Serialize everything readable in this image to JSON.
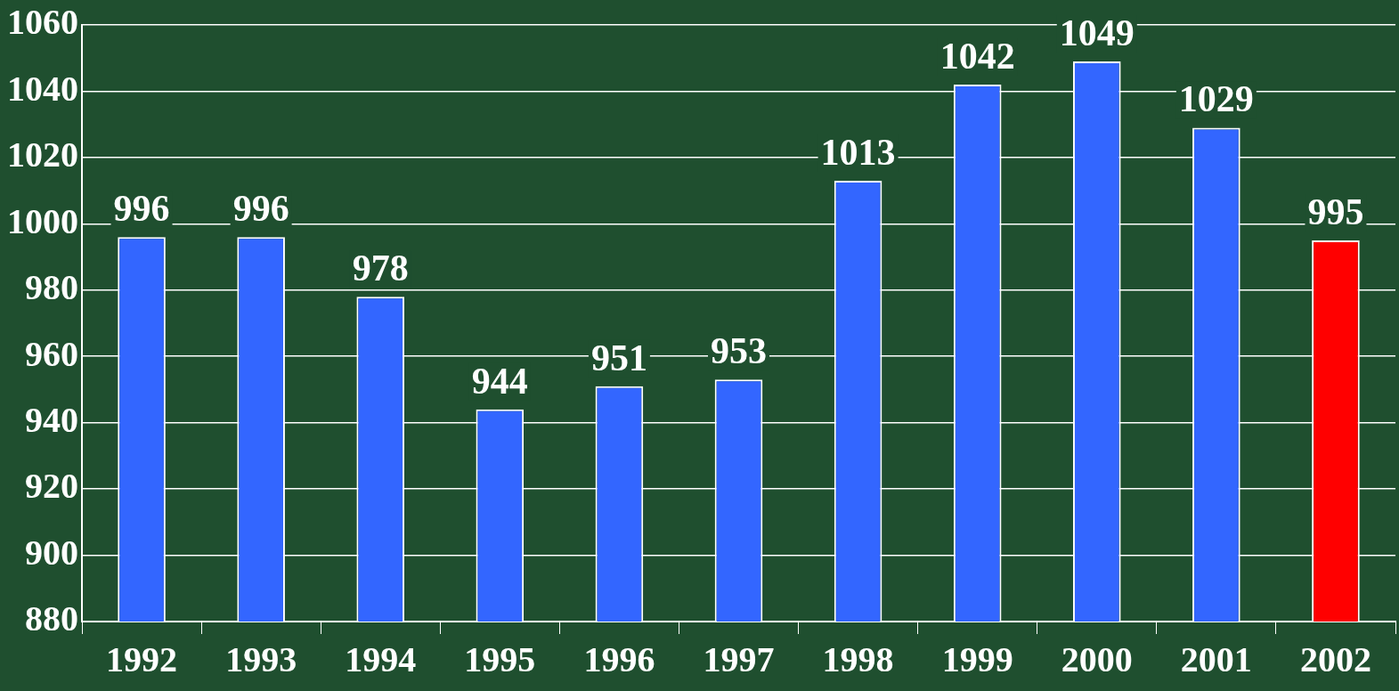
{
  "chart_data": {
    "type": "bar",
    "categories": [
      "1992",
      "1993",
      "1994",
      "1995",
      "1996",
      "1997",
      "1998",
      "1999",
      "2000",
      "2001",
      "2002"
    ],
    "values": [
      996,
      996,
      978,
      944,
      951,
      953,
      1013,
      1042,
      1049,
      1029,
      995
    ],
    "colors": [
      "#3366ff",
      "#3366ff",
      "#3366ff",
      "#3366ff",
      "#3366ff",
      "#3366ff",
      "#3366ff",
      "#3366ff",
      "#3366ff",
      "#3366ff",
      "#ff0000"
    ],
    "ylim": [
      880,
      1060
    ],
    "yticks": [
      880,
      900,
      920,
      940,
      960,
      980,
      1000,
      1020,
      1040,
      1060
    ],
    "grid": "y",
    "legend": false,
    "data_labels": true
  }
}
